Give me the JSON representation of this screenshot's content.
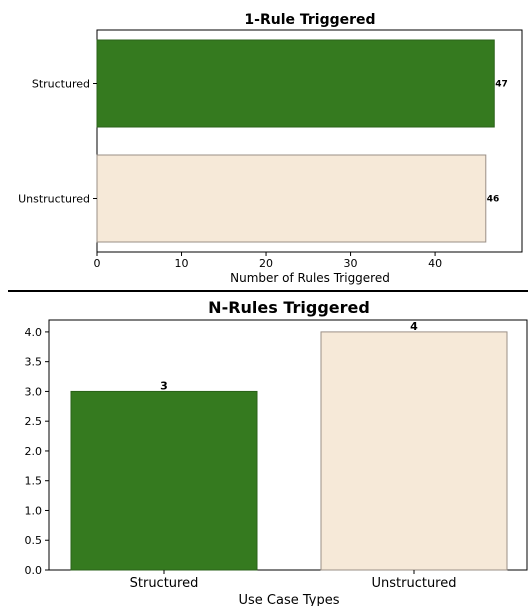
{
  "colors": {
    "structured": "#357a1f",
    "unstructured": "#f6e9d8",
    "unstructured_edge": "#9a8f86",
    "structured_edge": "#2a6118",
    "divider": "#000000"
  },
  "chart_data": [
    {
      "type": "bar",
      "orientation": "horizontal",
      "title": "1-Rule Triggered",
      "xlabel": "Number of Rules Triggered",
      "ylabel": "",
      "categories": [
        "Structured",
        "Unstructured"
      ],
      "values": [
        47,
        46
      ],
      "data_labels": [
        "47",
        "46"
      ],
      "xlim": [
        0,
        50
      ],
      "xticks": [
        0,
        10,
        20,
        30,
        40
      ],
      "xtick_labels": [
        "0",
        "10",
        "20",
        "30",
        "40"
      ],
      "grid": false,
      "legend": "none"
    },
    {
      "type": "bar",
      "orientation": "vertical",
      "title": "N-Rules Triggered",
      "xlabel": "Use Case Types",
      "ylabel": "",
      "categories": [
        "Structured",
        "Unstructured"
      ],
      "values": [
        3,
        4
      ],
      "data_labels": [
        "3",
        "4"
      ],
      "ylim": [
        0,
        4.2
      ],
      "yticks": [
        0,
        0.5,
        1.0,
        1.5,
        2.0,
        2.5,
        3.0,
        3.5,
        4.0
      ],
      "ytick_labels": [
        "0.0",
        "0.5",
        "1.0",
        "1.5",
        "2.0",
        "2.5",
        "3.0",
        "3.5",
        "4.0"
      ],
      "grid": false,
      "legend": "none"
    }
  ]
}
